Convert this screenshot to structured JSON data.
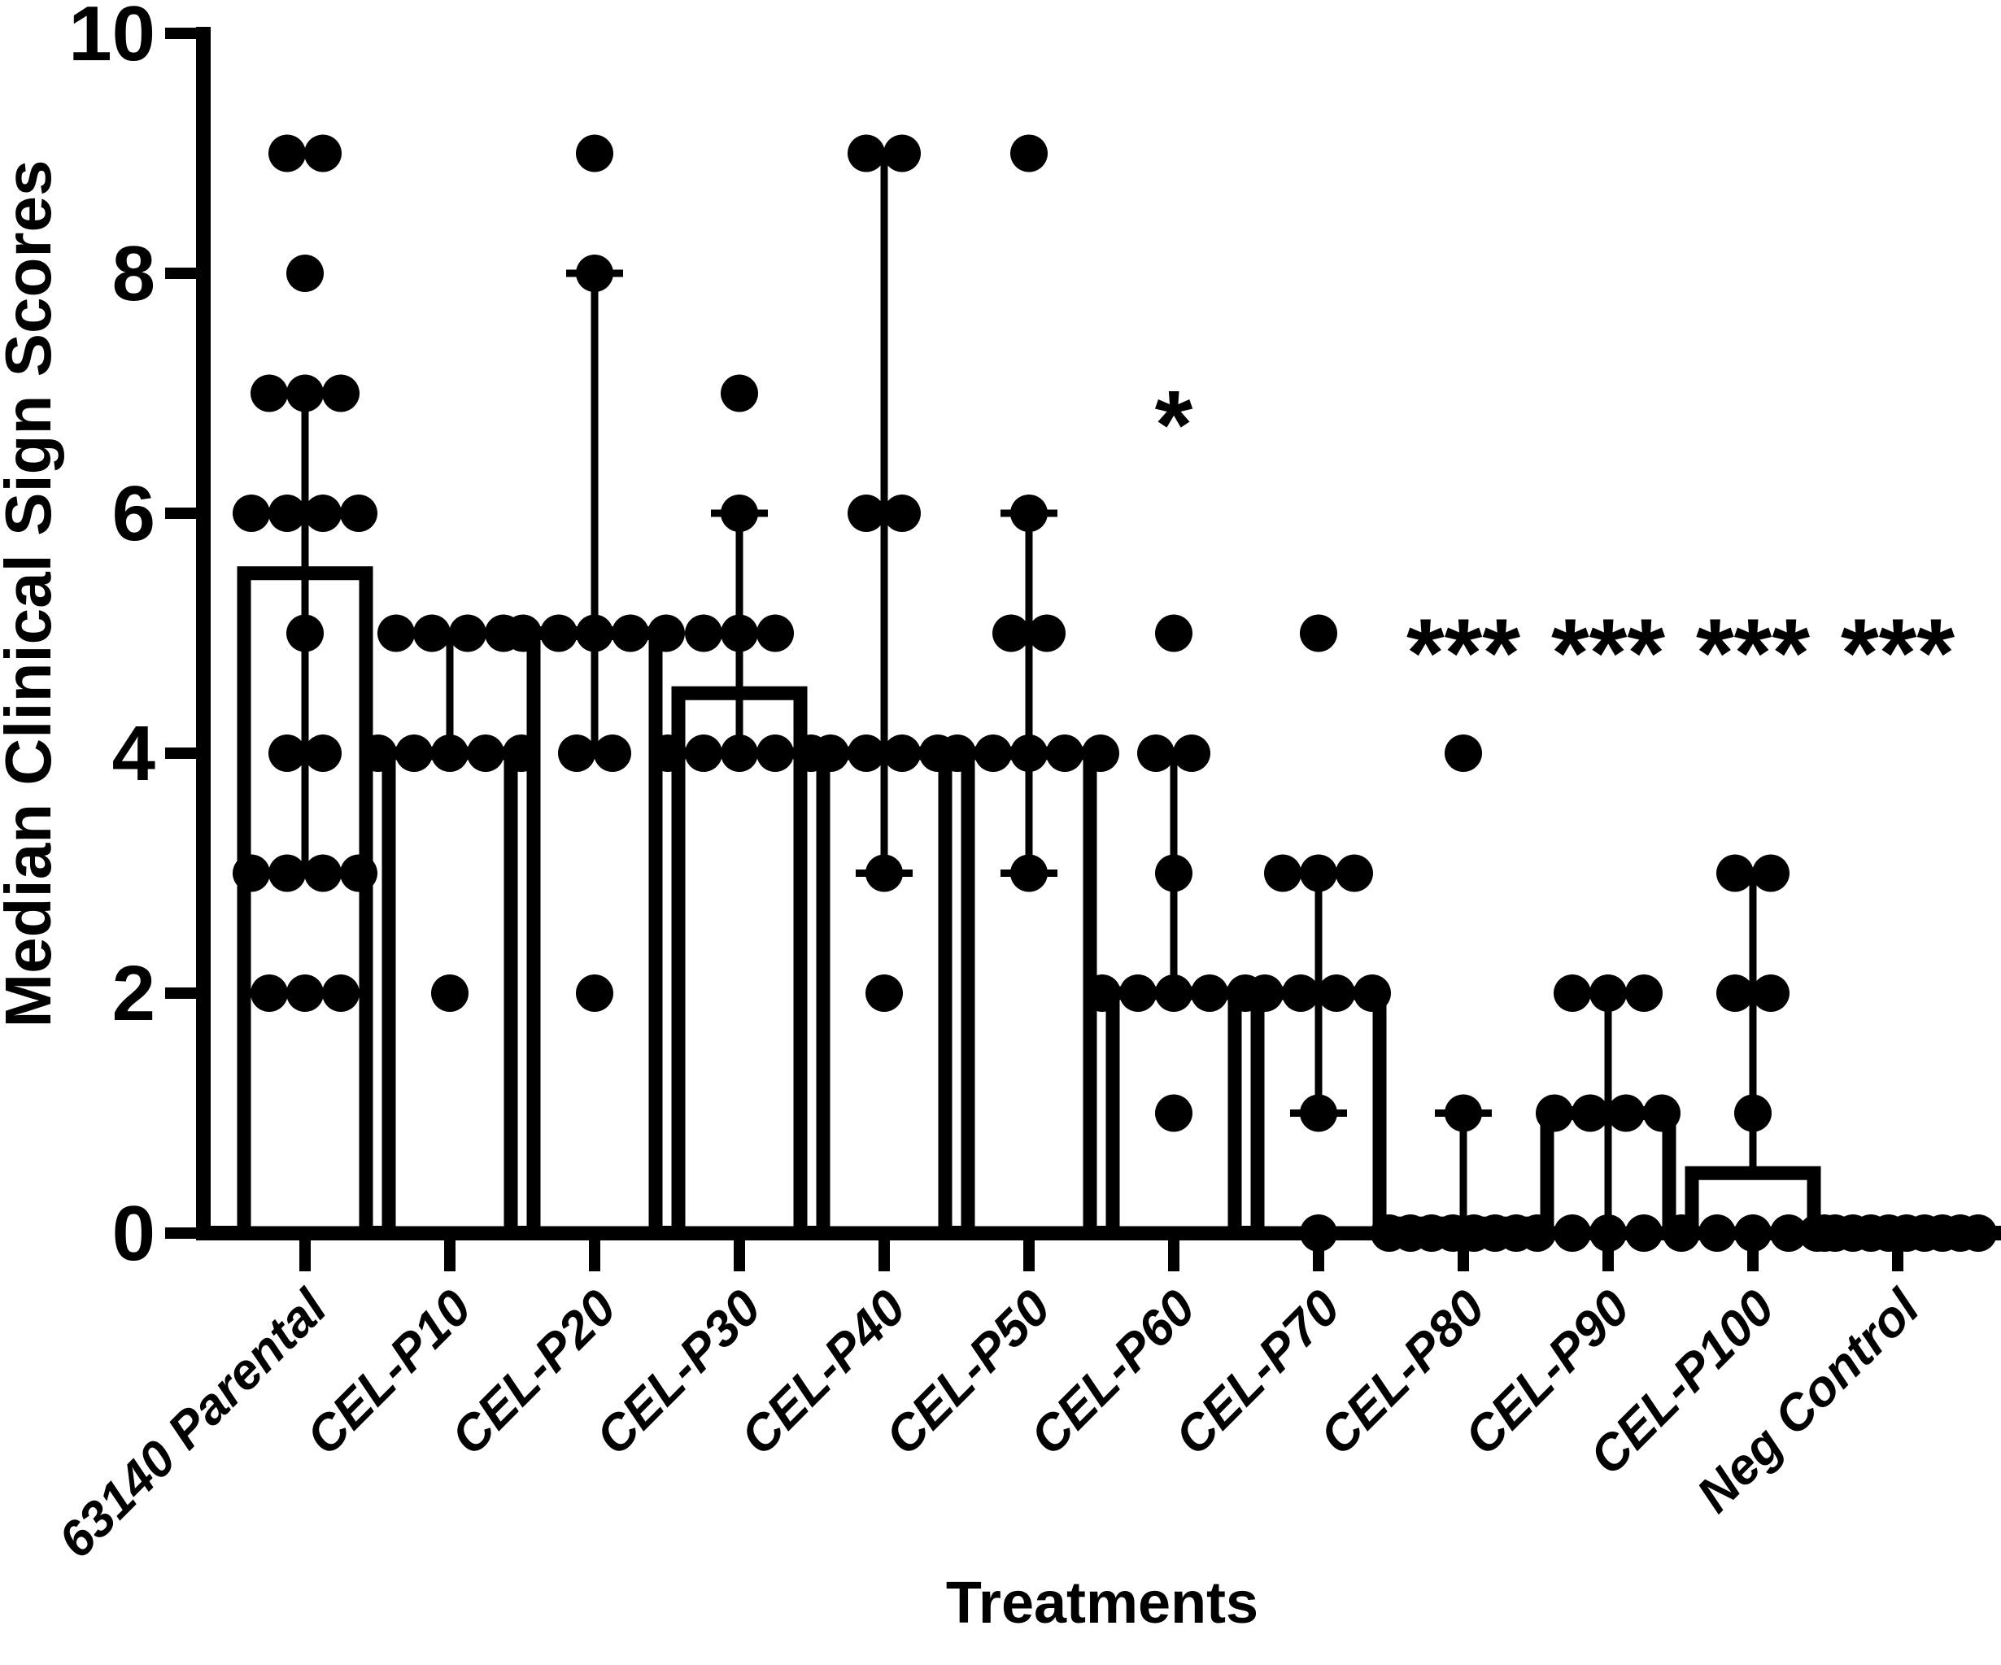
{
  "chart_data": {
    "type": "bar",
    "title": "",
    "ylabel": "Median Clinical Sign Scores",
    "xlabel": "Treatments",
    "ylim": [
      0,
      10
    ],
    "yticks": [
      0,
      2,
      4,
      6,
      8,
      10
    ],
    "grid": false,
    "legend": "none",
    "bar_fill": "#ffffff",
    "ink_color": "#000000",
    "categories": [
      "63140 Parental",
      "CEL-P10",
      "CEL-P20",
      "CEL-P30",
      "CEL-P40",
      "CEL-P50",
      "CEL-P60",
      "CEL-P70",
      "CEL-P80",
      "CEL-P90",
      "CEL-P100",
      "Neg Control"
    ],
    "series": [
      {
        "label": "63140 Parental",
        "median": 5.5,
        "whisker": [
          3,
          7
        ],
        "points": [
          [
            9,
            2
          ],
          [
            8,
            1
          ],
          [
            7,
            3
          ],
          [
            6,
            4
          ],
          [
            5,
            1
          ],
          [
            4,
            2
          ],
          [
            3,
            4
          ],
          [
            2,
            3
          ]
        ],
        "significance": ""
      },
      {
        "label": "CEL-P10",
        "median": 4,
        "whisker": [
          4,
          5
        ],
        "points": [
          [
            5,
            4
          ],
          [
            4,
            5
          ],
          [
            2,
            1
          ]
        ],
        "significance": ""
      },
      {
        "label": "CEL-P20",
        "median": 5,
        "whisker": [
          4,
          8
        ],
        "points": [
          [
            9,
            1
          ],
          [
            8,
            1
          ],
          [
            5,
            5
          ],
          [
            4,
            2
          ],
          [
            2,
            1
          ]
        ],
        "significance": ""
      },
      {
        "label": "CEL-P30",
        "median": 4.5,
        "whisker": [
          4,
          6
        ],
        "points": [
          [
            7,
            1
          ],
          [
            6,
            1
          ],
          [
            5,
            3
          ],
          [
            4,
            5
          ]
        ],
        "significance": ""
      },
      {
        "label": "CEL-P40",
        "median": 4,
        "whisker": [
          3,
          9
        ],
        "points": [
          [
            9,
            2
          ],
          [
            6,
            2
          ],
          [
            4,
            4
          ],
          [
            3,
            1
          ],
          [
            2,
            1
          ]
        ],
        "significance": ""
      },
      {
        "label": "CEL-P50",
        "median": 4,
        "whisker": [
          3,
          6
        ],
        "points": [
          [
            9,
            1
          ],
          [
            6,
            1
          ],
          [
            5,
            2
          ],
          [
            4,
            5
          ],
          [
            3,
            1
          ]
        ],
        "significance": ""
      },
      {
        "label": "CEL-P60",
        "median": 2,
        "whisker": [
          2,
          4
        ],
        "points": [
          [
            5,
            1
          ],
          [
            4,
            2
          ],
          [
            3,
            1
          ],
          [
            2,
            5
          ],
          [
            1,
            1
          ]
        ],
        "significance": "*"
      },
      {
        "label": "CEL-P70",
        "median": 2,
        "whisker": [
          1,
          3
        ],
        "points": [
          [
            5,
            1
          ],
          [
            3,
            3
          ],
          [
            2,
            4
          ],
          [
            1,
            1
          ],
          [
            0,
            1
          ]
        ],
        "significance": ""
      },
      {
        "label": "CEL-P80",
        "median": 0.08,
        "whisker": [
          0.08,
          1
        ],
        "points": [
          [
            4,
            1
          ],
          [
            1,
            1
          ],
          [
            0,
            8
          ]
        ],
        "significance": "***"
      },
      {
        "label": "CEL-P90",
        "median": 1,
        "whisker": [
          0,
          2
        ],
        "points": [
          [
            2,
            3
          ],
          [
            1,
            4
          ],
          [
            0,
            3
          ]
        ],
        "significance": "***"
      },
      {
        "label": "CEL-P100",
        "median": 0.5,
        "whisker": [
          0.5,
          3
        ],
        "points": [
          [
            3,
            2
          ],
          [
            2,
            2
          ],
          [
            1,
            1
          ],
          [
            0,
            5
          ]
        ],
        "significance": "***"
      },
      {
        "label": "Neg Control",
        "median": 0.08,
        "whisker": null,
        "points": [
          [
            0,
            10
          ]
        ],
        "significance": "***"
      }
    ],
    "significance_markers": {
      "single_star_value_level": 7,
      "triple_star_value_level": 5.1
    }
  }
}
